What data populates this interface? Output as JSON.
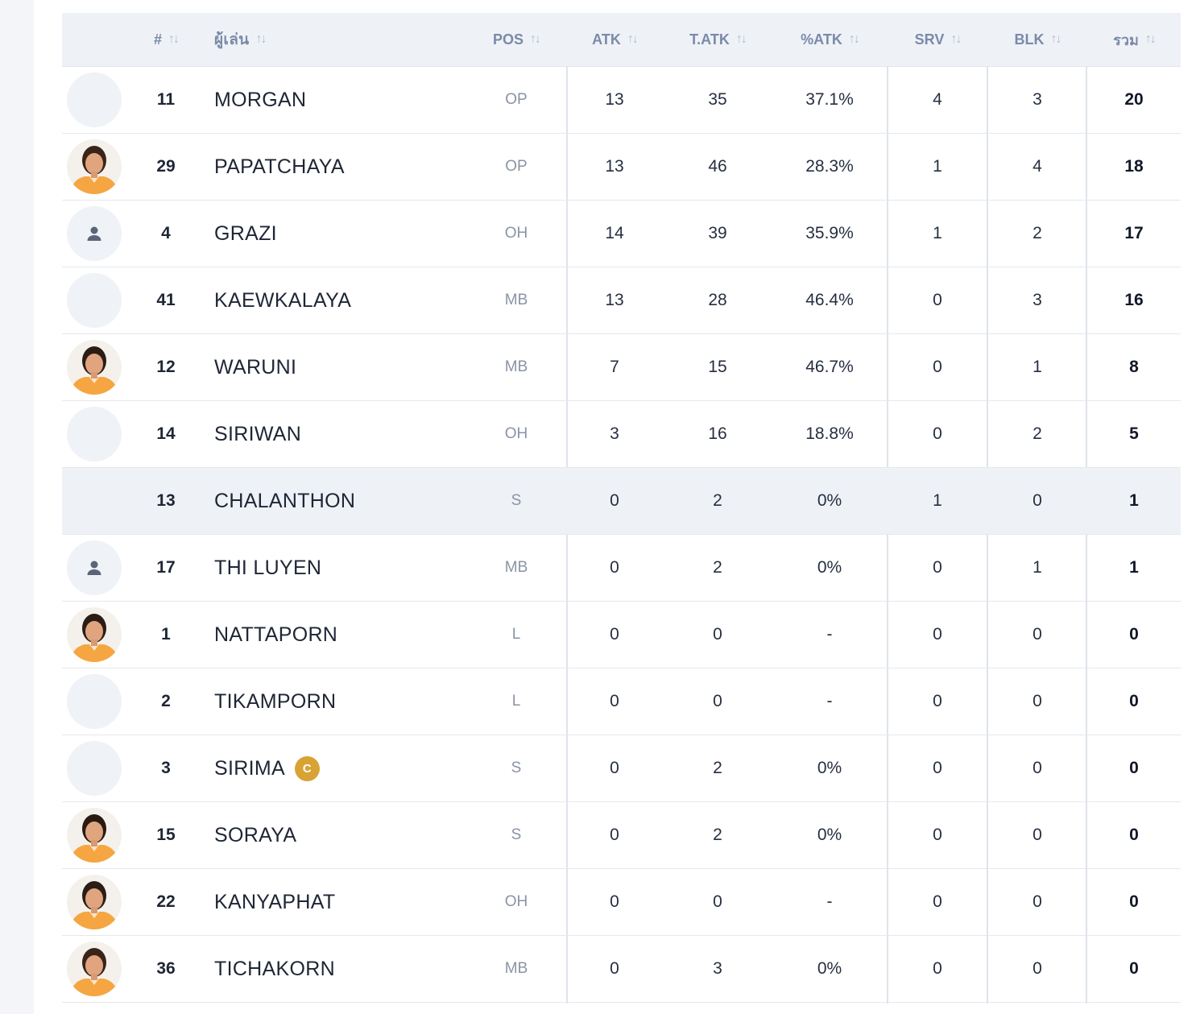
{
  "header": {
    "num": "#",
    "player": "ผู้เล่น",
    "pos": "POS",
    "atk": "ATK",
    "tatk": "T.ATK",
    "patk": "%ATK",
    "srv": "SRV",
    "blk": "BLK",
    "total": "รวม",
    "sort_glyph": "↑↓"
  },
  "players": [
    {
      "num": "11",
      "name": "MORGAN",
      "pos": "OP",
      "atk": "13",
      "tatk": "35",
      "patk": "37.1%",
      "srv": "4",
      "blk": "3",
      "total": "20",
      "avatar": "blank"
    },
    {
      "num": "29",
      "name": "PAPATCHAYA",
      "pos": "OP",
      "atk": "13",
      "tatk": "46",
      "patk": "28.3%",
      "srv": "1",
      "blk": "4",
      "total": "18",
      "avatar": "photo"
    },
    {
      "num": "4",
      "name": "GRAZI",
      "pos": "OH",
      "atk": "14",
      "tatk": "39",
      "patk": "35.9%",
      "srv": "1",
      "blk": "2",
      "total": "17",
      "avatar": "person-icon"
    },
    {
      "num": "41",
      "name": "KAEWKALAYA",
      "pos": "MB",
      "atk": "13",
      "tatk": "28",
      "patk": "46.4%",
      "srv": "0",
      "blk": "3",
      "total": "16",
      "avatar": "blank"
    },
    {
      "num": "12",
      "name": "WARUNI",
      "pos": "MB",
      "atk": "7",
      "tatk": "15",
      "patk": "46.7%",
      "srv": "0",
      "blk": "1",
      "total": "8",
      "avatar": "photo"
    },
    {
      "num": "14",
      "name": "SIRIWAN",
      "pos": "OH",
      "atk": "3",
      "tatk": "16",
      "patk": "18.8%",
      "srv": "0",
      "blk": "2",
      "total": "5",
      "avatar": "blank"
    },
    {
      "num": "13",
      "name": "CHALANTHON",
      "pos": "S",
      "atk": "0",
      "tatk": "2",
      "patk": "0%",
      "srv": "1",
      "blk": "0",
      "total": "1",
      "avatar": "none"
    },
    {
      "num": "17",
      "name": "THI LUYEN",
      "pos": "MB",
      "atk": "0",
      "tatk": "2",
      "patk": "0%",
      "srv": "0",
      "blk": "1",
      "total": "1",
      "avatar": "person-icon"
    },
    {
      "num": "1",
      "name": "NATTAPORN",
      "pos": "L",
      "atk": "0",
      "tatk": "0",
      "patk": "-",
      "srv": "0",
      "blk": "0",
      "total": "0",
      "avatar": "photo"
    },
    {
      "num": "2",
      "name": "TIKAMPORN",
      "pos": "L",
      "atk": "0",
      "tatk": "0",
      "patk": "-",
      "srv": "0",
      "blk": "0",
      "total": "0",
      "avatar": "blank"
    },
    {
      "num": "3",
      "name": "SIRIMA",
      "pos": "S",
      "atk": "0",
      "tatk": "2",
      "patk": "0%",
      "srv": "0",
      "blk": "0",
      "total": "0",
      "avatar": "blank",
      "captain": "C"
    },
    {
      "num": "15",
      "name": "SORAYA",
      "pos": "S",
      "atk": "0",
      "tatk": "2",
      "patk": "0%",
      "srv": "0",
      "blk": "0",
      "total": "0",
      "avatar": "photo"
    },
    {
      "num": "22",
      "name": "KANYAPHAT",
      "pos": "OH",
      "atk": "0",
      "tatk": "0",
      "patk": "-",
      "srv": "0",
      "blk": "0",
      "total": "0",
      "avatar": "photo"
    },
    {
      "num": "36",
      "name": "TICHAKORN",
      "pos": "MB",
      "atk": "0",
      "tatk": "3",
      "patk": "0%",
      "srv": "0",
      "blk": "0",
      "total": "0",
      "avatar": "photo"
    }
  ],
  "colors": {
    "header_bg": "#eef2f7",
    "highlight_row": "#eef2f7",
    "captain_badge": "#d8a335",
    "jersey": "#f5a642"
  }
}
